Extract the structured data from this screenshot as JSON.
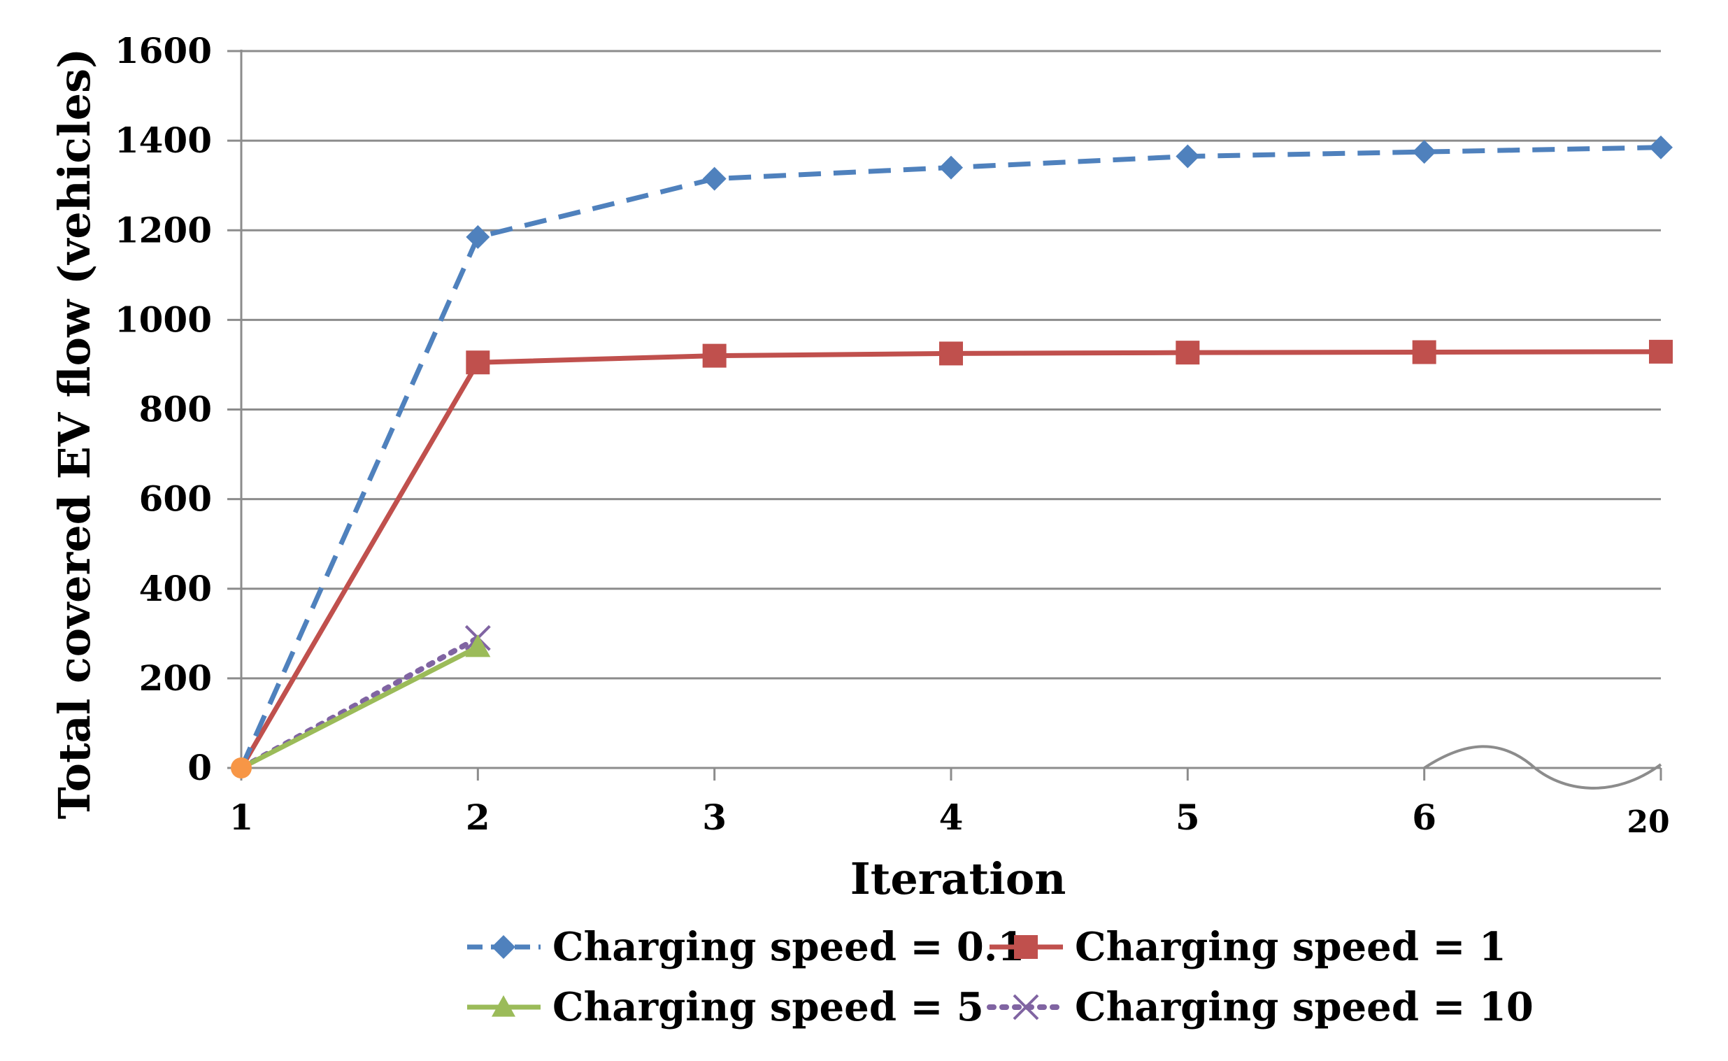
{
  "chart_data": {
    "type": "line",
    "title": "",
    "xlabel": "Iteration",
    "ylabel": "Total  covered EV flow (vehicles)",
    "categories": [
      "1",
      "2",
      "3",
      "4",
      "5",
      "6",
      "20"
    ],
    "ylim": [
      0,
      1600
    ],
    "yticks": [
      "0",
      "200",
      "400",
      "600",
      "800",
      "1000",
      "1200",
      "1400",
      "1600"
    ],
    "grid": true,
    "axis_break": "between 6 and 20",
    "legend_position": "bottom",
    "series": [
      {
        "name": "Charging speed = 0.1",
        "color": "#4F81BD",
        "line_style": "dashed",
        "marker": "diamond",
        "values": [
          0,
          1185,
          1315,
          1340,
          1365,
          1375,
          1385
        ]
      },
      {
        "name": "Charging speed = 1",
        "color": "#C0504D",
        "line_style": "solid",
        "marker": "square",
        "values": [
          0,
          905,
          920,
          925,
          927,
          928,
          929
        ]
      },
      {
        "name": "Charging speed = 5",
        "color": "#9BBB59",
        "line_style": "solid",
        "marker": "triangle",
        "values": [
          0,
          270,
          null,
          null,
          null,
          null,
          null
        ]
      },
      {
        "name": "Charging speed = 10",
        "color": "#8064A2",
        "line_style": "dotted",
        "marker": "x",
        "values": [
          0,
          290,
          null,
          null,
          null,
          null,
          null
        ]
      }
    ],
    "start_point_marker_color": "#F79646"
  }
}
